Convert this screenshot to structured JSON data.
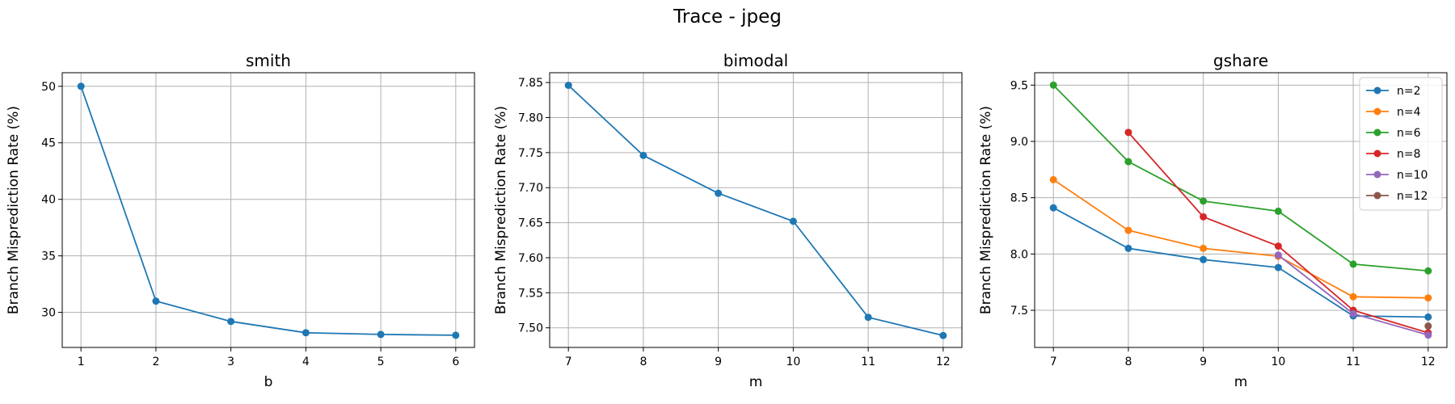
{
  "figure_title": "Trace - jpeg",
  "chart_data": [
    {
      "type": "line",
      "title": "smith",
      "xlabel": "b",
      "ylabel": "Branch Misprediction Rate (%)",
      "x": [
        1,
        2,
        3,
        4,
        5,
        6
      ],
      "xlim": [
        0.75,
        6.25
      ],
      "ylim": [
        26.9,
        51.2
      ],
      "xticks": [
        1,
        2,
        3,
        4,
        5,
        6
      ],
      "yticks": [
        30,
        35,
        40,
        45,
        50
      ],
      "ytick_decimals": 0,
      "grid": true,
      "series": [
        {
          "name": "",
          "color": "#1f77b4",
          "x": [
            1,
            2,
            3,
            4,
            5,
            6
          ],
          "values": [
            50.0,
            31.0,
            29.2,
            28.2,
            28.05,
            27.98
          ]
        }
      ]
    },
    {
      "type": "line",
      "title": "bimodal",
      "xlabel": "m",
      "ylabel": "Branch Misprediction Rate (%)",
      "xlim": [
        6.75,
        12.25
      ],
      "ylim": [
        7.472,
        7.864
      ],
      "xticks": [
        7,
        8,
        9,
        10,
        11,
        12
      ],
      "yticks": [
        7.5,
        7.55,
        7.6,
        7.65,
        7.7,
        7.75,
        7.8,
        7.85
      ],
      "ytick_decimals": 2,
      "grid": true,
      "series": [
        {
          "name": "",
          "color": "#1f77b4",
          "x": [
            7,
            8,
            9,
            10,
            11,
            12
          ],
          "values": [
            7.846,
            7.746,
            7.692,
            7.652,
            7.515,
            7.489
          ]
        }
      ]
    },
    {
      "type": "line",
      "title": "gshare",
      "xlabel": "m",
      "ylabel": "Branch Misprediction Rate (%)",
      "xlim": [
        6.75,
        12.25
      ],
      "ylim": [
        7.17,
        9.61
      ],
      "xticks": [
        7,
        8,
        9,
        10,
        11,
        12
      ],
      "yticks": [
        7.5,
        8.0,
        8.5,
        9.0,
        9.5
      ],
      "ytick_decimals": 1,
      "grid": true,
      "legend": "top-right",
      "series": [
        {
          "name": "n=2",
          "color": "#1f77b4",
          "x": [
            7,
            8,
            9,
            10,
            11,
            12
          ],
          "values": [
            8.41,
            8.05,
            7.95,
            7.88,
            7.45,
            7.44
          ]
        },
        {
          "name": "n=4",
          "color": "#ff7f0e",
          "x": [
            7,
            8,
            9,
            10,
            11,
            12
          ],
          "values": [
            8.66,
            8.21,
            8.05,
            7.98,
            7.62,
            7.61
          ]
        },
        {
          "name": "n=6",
          "color": "#2ca02c",
          "x": [
            7,
            8,
            9,
            10,
            11,
            12
          ],
          "values": [
            9.5,
            8.82,
            8.47,
            8.38,
            7.91,
            7.85
          ]
        },
        {
          "name": "n=8",
          "color": "#d62728",
          "x": [
            8,
            9,
            10,
            11,
            12
          ],
          "values": [
            9.08,
            8.33,
            8.07,
            7.5,
            7.3
          ]
        },
        {
          "name": "n=10",
          "color": "#9467bd",
          "x": [
            10,
            11,
            12
          ],
          "values": [
            7.99,
            7.47,
            7.28
          ]
        },
        {
          "name": "n=12",
          "color": "#8c564b",
          "x": [
            12
          ],
          "values": [
            7.36
          ]
        }
      ]
    }
  ]
}
